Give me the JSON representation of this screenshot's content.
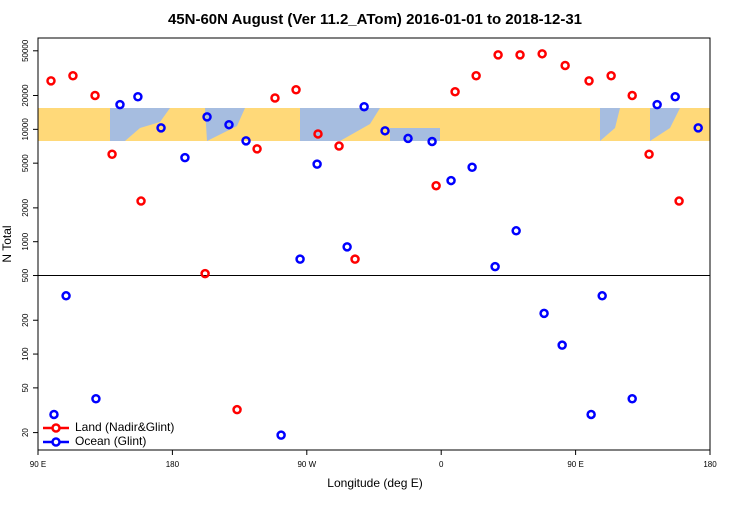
{
  "chart_data": {
    "type": "scatter",
    "title": "45N-60N August (Ver 11.2_ATom)   2016-01-01 to 2018-12-31",
    "x_label": "Longitude (deg E)",
    "y_label": "N Total",
    "xlim": [
      90,
      540
    ],
    "xticks": [
      {
        "value": 90,
        "label": "90 E"
      },
      {
        "value": 180,
        "label": "180"
      },
      {
        "value": 270,
        "label": "90 W"
      },
      {
        "value": 360,
        "label": "0"
      },
      {
        "value": 450,
        "label": "90 E"
      },
      {
        "value": 540,
        "label": "180"
      }
    ],
    "ylim": [
      14,
      65000
    ],
    "ylog": true,
    "yticks": [
      20,
      50,
      100,
      200,
      500,
      1000,
      2000,
      5000,
      10000,
      20000,
      50000
    ],
    "reference_line": 500,
    "legend": "bottom left",
    "series": [
      {
        "name": "Land (Nadir&Glint)",
        "color": "#ff0000",
        "x": [
          98.7,
          113.4,
          128.2,
          139.6,
          159,
          201.9,
          223.3,
          236.7,
          248.7,
          262.8,
          277.5,
          291.6,
          302.3,
          356.6,
          369.3,
          383.4,
          398.1,
          412.8,
          427.6,
          443,
          459,
          473.8,
          487.9,
          499.2,
          519.3
        ],
        "values": [
          27000,
          30000,
          20000,
          6000,
          2300,
          520,
          32,
          6700,
          19000,
          22500,
          9100,
          7100,
          700,
          3150,
          21600,
          30000,
          46000,
          46000,
          47000,
          37000,
          27000,
          30000,
          20000,
          6000,
          2300
        ]
      },
      {
        "name": "Ocean (Glint)",
        "color": "#0000ff",
        "x": [
          100.7,
          108.8,
          128.8,
          144.9,
          156.9,
          172.4,
          188.4,
          203.2,
          217.9,
          229.3,
          252.8,
          265.5,
          276.9,
          297,
          308.4,
          322.4,
          337.8,
          353.9,
          366.6,
          380.7,
          396.1,
          410.2,
          428.9,
          441,
          460.4,
          467.8,
          487.9,
          504.6,
          516.7,
          532.1
        ],
        "values": [
          29,
          330,
          40,
          16600,
          19500,
          10300,
          5600,
          12900,
          11000,
          7900,
          19,
          700,
          4900,
          900,
          15900,
          9700,
          8300,
          7800,
          3500,
          4600,
          600,
          1250,
          230,
          120,
          29,
          330,
          40,
          16600,
          19500,
          10300
        ]
      }
    ]
  }
}
